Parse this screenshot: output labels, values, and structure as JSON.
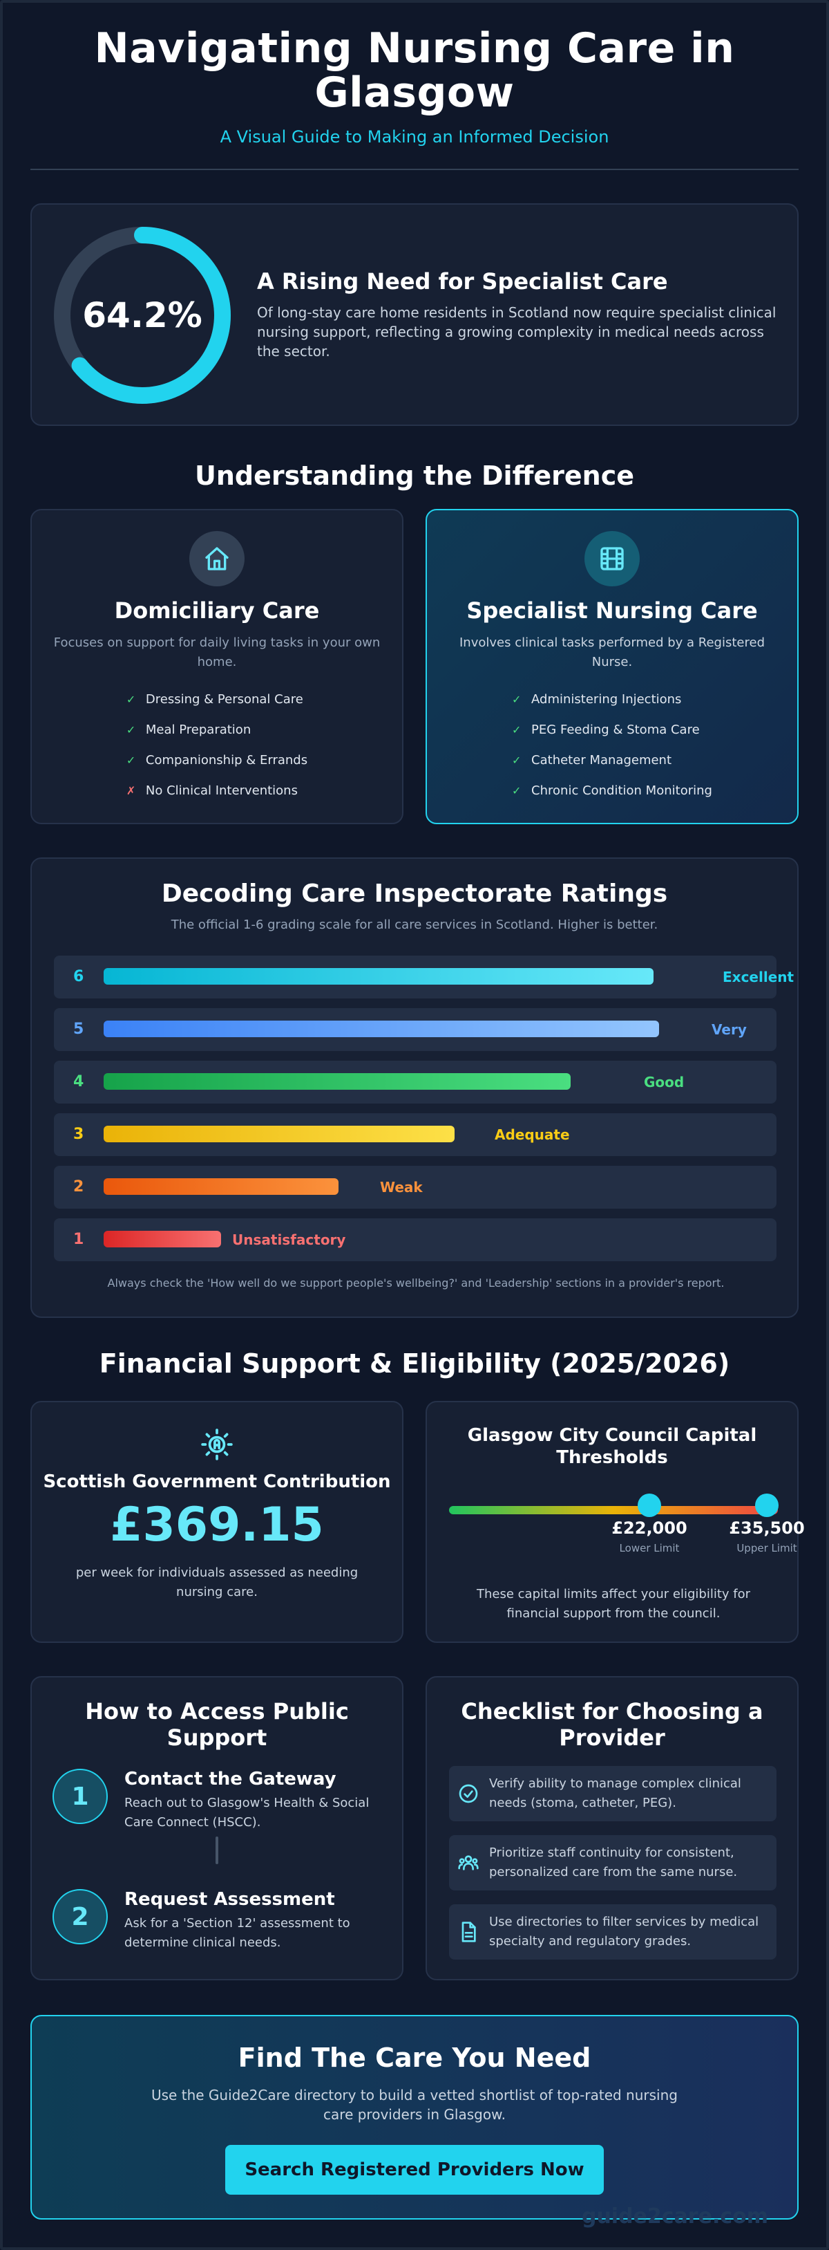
{
  "header": {
    "title": "Navigating Nursing Care in Glasgow",
    "subtitle": "A Visual Guide to Making an Informed Decision"
  },
  "stat": {
    "value": "64.2%",
    "percent": 64.2,
    "heading": "A Rising Need for Specialist Care",
    "description": "Of long-stay care home residents in Scotland now require specialist clinical nursing support, reflecting a growing complexity in medical needs across the sector."
  },
  "difference": {
    "title": "Understanding the Difference",
    "domiciliary": {
      "icon": "house-icon",
      "title": "Domiciliary Care",
      "description": "Focuses on support for daily living tasks in your own home.",
      "items": [
        {
          "mark": "✓",
          "text": "Dressing & Personal Care"
        },
        {
          "mark": "✓",
          "text": "Meal Preparation"
        },
        {
          "mark": "✓",
          "text": "Companionship & Errands"
        },
        {
          "mark": "✗",
          "text": "No Clinical Interventions"
        }
      ]
    },
    "specialist": {
      "icon": "medical-film-icon",
      "title": "Specialist Nursing Care",
      "description": "Involves clinical tasks performed by a Registered Nurse.",
      "items": [
        {
          "mark": "✓",
          "text": "Administering Injections"
        },
        {
          "mark": "✓",
          "text": "PEG Feeding & Stoma Care"
        },
        {
          "mark": "✓",
          "text": "Catheter Management"
        },
        {
          "mark": "✓",
          "text": "Chronic Condition Monitoring"
        }
      ]
    }
  },
  "ratings": {
    "title": "Decoding Care Inspectorate Ratings",
    "subtitle": "The official 1-6 grading scale for all care services in Scotland. Higher is better.",
    "grades": [
      {
        "grade": "6",
        "label": "Excellent",
        "fill": 1.0,
        "color": "#22d3ee"
      },
      {
        "grade": "5",
        "label": "Very Good",
        "fill": 1.0,
        "color": "#60a5fa"
      },
      {
        "grade": "4",
        "label": "Good",
        "fill": 0.8,
        "color": "#4ade80"
      },
      {
        "grade": "3",
        "label": "Adequate",
        "fill": 0.6,
        "color": "#facc15"
      },
      {
        "grade": "2",
        "label": "Weak",
        "fill": 0.4,
        "color": "#fb923c"
      },
      {
        "grade": "1",
        "label": "Unsatisfactory",
        "fill": 0.2,
        "color": "#f87171"
      }
    ],
    "note": "Always check the 'How well do we support people's wellbeing?' and 'Leadership' sections in a provider's report."
  },
  "finance": {
    "title": "Financial Support & Eligibility (2025/2026)",
    "contribution": {
      "icon": "sun-money-icon",
      "heading": "Scottish Government Contribution",
      "amount": "£369.15",
      "description": "per week for individuals assessed as needing nursing care."
    },
    "thresholds": {
      "title": "Glasgow City Council Capital Thresholds",
      "lower_value": "£22,000",
      "lower_caption": "Lower Limit",
      "upper_value": "£35,500",
      "upper_caption": "Upper Limit",
      "note": "These capital limits affect your eligibility for financial support from the council."
    }
  },
  "access": {
    "title": "How to Access Public Support",
    "steps": [
      {
        "number": "1",
        "title": "Contact the Gateway",
        "description": "Reach out to Glasgow's Health & Social Care Connect (HSCC)."
      },
      {
        "number": "2",
        "title": "Request Assessment",
        "description": "Ask for a 'Section 12' assessment to determine clinical needs."
      }
    ]
  },
  "checklist": {
    "title": "Checklist for Choosing a Provider",
    "items": [
      {
        "icon": "check-circle-icon",
        "text": "Verify ability to manage complex clinical needs (stoma, catheter, PEG)."
      },
      {
        "icon": "people-icon",
        "text": "Prioritize staff continuity for consistent, personalized care from the same nurse."
      },
      {
        "icon": "document-icon",
        "text": "Use directories to filter services by medical specialty and regulatory grades."
      }
    ]
  },
  "cta": {
    "title": "Find The Care You Need",
    "description": "Use the Guide2Care directory to build a vetted shortlist of top-rated nursing care providers in Glasgow.",
    "button": "Search Registered Providers Now"
  },
  "watermark": "guide2care.com",
  "colors": {
    "background": "#0f1729",
    "accent": "#22d3ee",
    "card": "#172033"
  }
}
